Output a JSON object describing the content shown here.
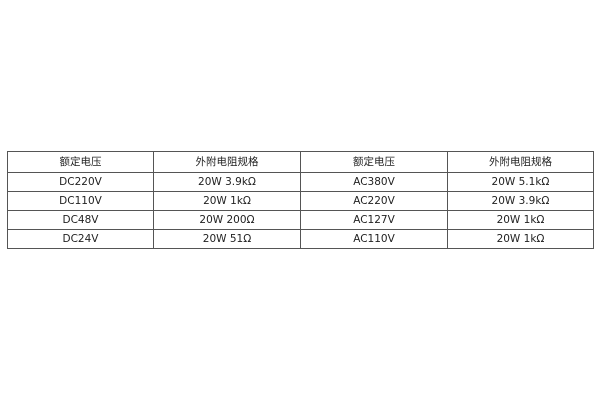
{
  "table": {
    "headers": [
      "额定电压",
      "外附电阻规格",
      "额定电压",
      "外附电阻规格"
    ],
    "rows": [
      [
        "DC220V",
        "20W 3.9kΩ",
        "AC380V",
        "20W 5.1kΩ"
      ],
      [
        "DC110V",
        "20W 1kΩ",
        "AC220V",
        "20W 3.9kΩ"
      ],
      [
        "DC48V",
        "20W 200Ω",
        "AC127V",
        "20W 1kΩ"
      ],
      [
        "DC24V",
        "20W 51Ω",
        "AC110V",
        "20W 1kΩ"
      ]
    ]
  }
}
